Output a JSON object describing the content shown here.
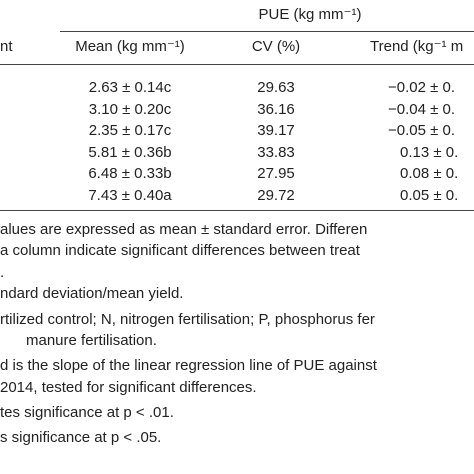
{
  "table": {
    "group_header": "PUE (kg mm⁻¹)",
    "first_header": "nt",
    "headers": [
      "Mean (kg mm⁻¹)",
      "CV (%)",
      "Trend (kg⁻¹ m"
    ],
    "rows": [
      [
        "2.63 ± 0.14c",
        "29.63",
        "−0.02 ± 0."
      ],
      [
        "3.10 ± 0.20c",
        "36.16",
        "−0.04 ± 0."
      ],
      [
        "2.35 ± 0.17c",
        "39.17",
        "−0.05 ± 0."
      ],
      [
        "5.81 ± 0.36b",
        "33.83",
        "0.13 ± 0."
      ],
      [
        "6.48 ± 0.33b",
        "27.95",
        "0.08 ± 0."
      ],
      [
        "7.43 ± 0.40a",
        "29.72",
        "0.05 ± 0."
      ]
    ]
  },
  "notes": [
    "alues are expressed as mean ± standard error. Differen",
    "a column indicate significant differences between treat",
    ".",
    "ndard deviation/mean yield.",
    "rtilized control; N, nitrogen fertilisation; P, phosphorus fer",
    "manure fertilisation.",
    "d is the slope of the linear regression line of PUE against",
    "2014, tested for significant differences.",
    "tes significance at p < .01.",
    "s significance at p < .05."
  ]
}
